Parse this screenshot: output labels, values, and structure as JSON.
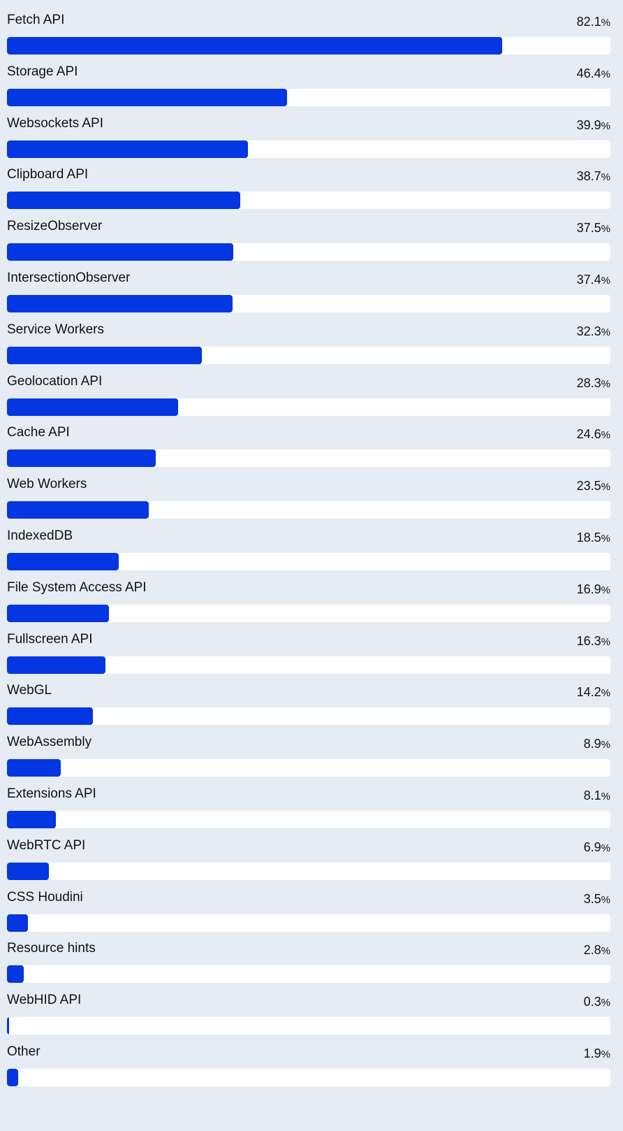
{
  "chart_data": {
    "type": "bar",
    "orientation": "horizontal",
    "unit": "%",
    "xlim": [
      0,
      100
    ],
    "colors": {
      "bar": "#0436e1",
      "track": "#ffffff",
      "background": "#e6ecf4"
    },
    "categories": [
      "Fetch API",
      "Storage API",
      "Websockets API",
      "Clipboard API",
      "ResizeObserver",
      "IntersectionObserver",
      "Service Workers",
      "Geolocation API",
      "Cache API",
      "Web Workers",
      "IndexedDB",
      "File System Access API",
      "Fullscreen API",
      "WebGL",
      "WebAssembly",
      "Extensions API",
      "WebRTC API",
      "CSS Houdini",
      "Resource hints",
      "WebHID API",
      "Other"
    ],
    "values": [
      82.1,
      46.4,
      39.9,
      38.7,
      37.5,
      37.4,
      32.3,
      28.3,
      24.6,
      23.5,
      18.5,
      16.9,
      16.3,
      14.2,
      8.9,
      8.1,
      6.9,
      3.5,
      2.8,
      0.3,
      1.9
    ],
    "value_labels": [
      "82.1",
      "46.4",
      "39.9",
      "38.7",
      "37.5",
      "37.4",
      "32.3",
      "28.3",
      "24.6",
      "23.5",
      "18.5",
      "16.9",
      "16.3",
      "14.2",
      "8.9",
      "8.1",
      "6.9",
      "3.5",
      "2.8",
      "0.3",
      "1.9"
    ]
  }
}
